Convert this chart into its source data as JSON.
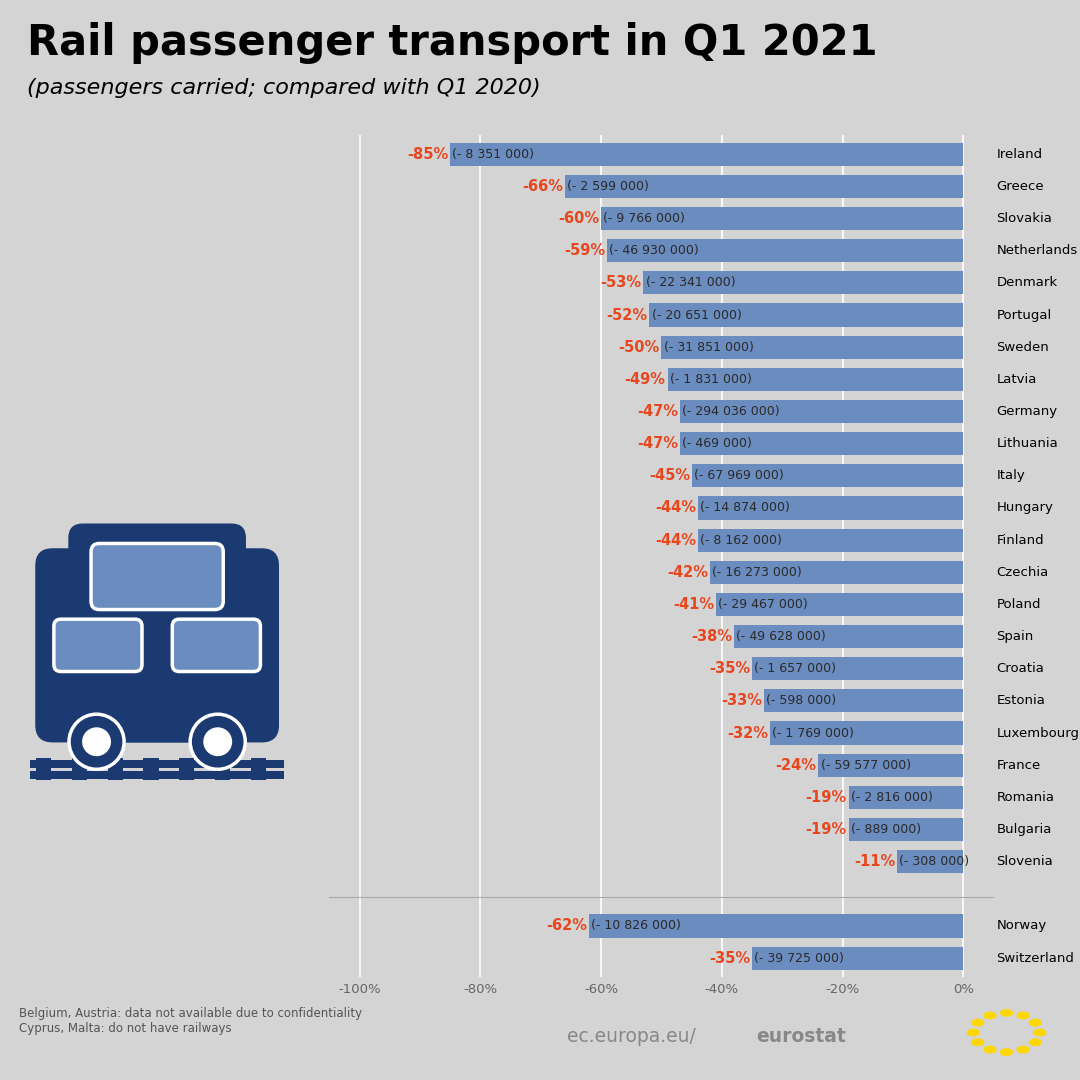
{
  "title": "Rail passenger transport in Q1 2021",
  "subtitle": "(passengers carried; compared with Q1 2020)",
  "background_color": "#d4d4d4",
  "bar_color": "#6b8cbe",
  "label_color_pct": "#e8471e",
  "label_color_abs": "#2a2a2a",
  "countries": [
    "Ireland",
    "Greece",
    "Slovakia",
    "Netherlands",
    "Denmark",
    "Portugal",
    "Sweden",
    "Latvia",
    "Germany",
    "Lithuania",
    "Italy",
    "Hungary",
    "Finland",
    "Czechia",
    "Poland",
    "Spain",
    "Croatia",
    "Estonia",
    "Luxembourg",
    "France",
    "Romania",
    "Bulgaria",
    "Slovenia"
  ],
  "values": [
    -85,
    -66,
    -60,
    -59,
    -53,
    -52,
    -50,
    -49,
    -47,
    -47,
    -45,
    -44,
    -44,
    -42,
    -41,
    -38,
    -35,
    -33,
    -32,
    -24,
    -19,
    -19,
    -11
  ],
  "abs_labels": [
    "- 8 351 000",
    "- 2 599 000",
    "- 9 766 000",
    "- 46 930 000",
    "- 22 341 000",
    "- 20 651 000",
    "- 31 851 000",
    "- 1 831 000",
    "- 294 036 000",
    "- 469 000",
    "- 67 969 000",
    "- 14 874 000",
    "- 8 162 000",
    "- 16 273 000",
    "- 29 467 000",
    "- 49 628 000",
    "- 1 657 000",
    "- 598 000",
    "- 1 769 000",
    "- 59 577 000",
    "- 2 816 000",
    "- 889 000",
    "- 308 000"
  ],
  "efta_countries": [
    "Norway",
    "Switzerland"
  ],
  "efta_values": [
    -62,
    -35
  ],
  "efta_abs_labels": [
    "- 10 826 000",
    "- 39 725 000"
  ],
  "xlim": [
    -105,
    5
  ],
  "xticks": [
    -100,
    -80,
    -60,
    -40,
    -20,
    0
  ],
  "xticklabels": [
    "-100%",
    "-80%",
    "-60%",
    "-40%",
    "-20%",
    "0%"
  ],
  "footnote": "Belgium, Austria: data not available due to confidentiality\nCyprus, Malta: do not have railways",
  "title_fontsize": 30,
  "subtitle_fontsize": 16,
  "country_fontsize": 9.5,
  "pct_fontsize": 10.5,
  "abs_fontsize": 9,
  "tick_fontsize": 9.5,
  "train_color": "#1c3a72"
}
